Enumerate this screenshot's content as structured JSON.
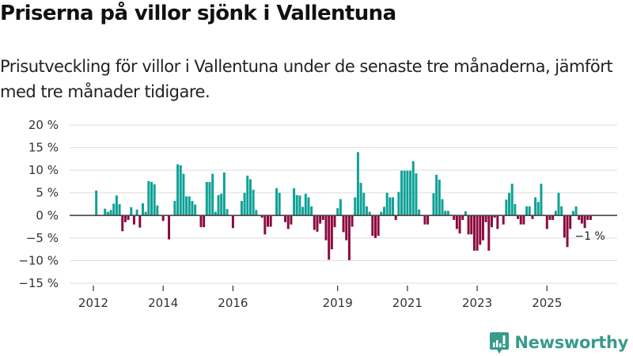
{
  "header": {
    "title": "Priserna på villor sjönk i Vallentuna",
    "subtitle": "Prisutveckling för villor i Vallentuna under de senaste tre månaderna, jämfört med tre månader tidigare."
  },
  "branding": {
    "logo_icon": "bar-chart-speech-bubble-icon",
    "logo_text": "Newsworthy"
  },
  "colors": {
    "positive": "#0fa196",
    "negative": "#8c0a3e",
    "zero_line": "#444444",
    "grid": "#dddddd",
    "brand": "#3a9a8c"
  },
  "chart_data": {
    "type": "bar",
    "title": "Priserna på villor sjönk i Vallentuna",
    "subtitle": "Prisutveckling för villor i Vallentuna under de senaste tre månaderna, jämfört med tre månader tidigare.",
    "xlabel": "",
    "ylabel": "",
    "unit": "%",
    "ylim": [
      -15,
      20
    ],
    "yticks": [
      -15,
      -10,
      -5,
      0,
      5,
      10,
      15,
      20
    ],
    "ytick_labels": [
      "−15 %",
      "−10 %",
      "−5 %",
      "0 %",
      "5 %",
      "10 %",
      "15 %",
      "20 %"
    ],
    "xticks": [
      2012,
      2014,
      2016,
      2019,
      2021,
      2023,
      2025
    ],
    "xtick_labels": [
      "2012",
      "2014",
      "2016",
      "2019",
      "2021",
      "2023",
      "2025"
    ],
    "x_start": "2012-01",
    "frequency": "monthly",
    "grid": true,
    "annotation": {
      "text": "−1 %",
      "attached_to": "last"
    },
    "values": [
      null,
      5.5,
      null,
      null,
      1.5,
      0.8,
      1.2,
      2.6,
      4.4,
      2.5,
      -3.5,
      -1.5,
      -1.0,
      1.8,
      -2.0,
      1.3,
      -2.7,
      2.7,
      0.8,
      7.6,
      7.4,
      6.9,
      2.2,
      null,
      -1.2,
      null,
      -5.3,
      null,
      3.2,
      11.3,
      11.1,
      9.2,
      4.2,
      4.2,
      3.2,
      2.4,
      null,
      -2.6,
      -2.6,
      7.4,
      7.4,
      9.2,
      0.8,
      4.5,
      4.8,
      9.5,
      1.4,
      null,
      -2.8,
      null,
      null,
      3.2,
      5.0,
      8.8,
      8.0,
      5.7,
      1.2,
      null,
      -0.5,
      -4.2,
      -2.5,
      -2.5,
      null,
      6.0,
      5.0,
      null,
      -1.5,
      -3.0,
      -2.0,
      6.0,
      4.5,
      4.4,
      1.9,
      4.8,
      4.0,
      2.0,
      -3.2,
      -3.6,
      -1.8,
      -1.0,
      -5.5,
      -9.8,
      -7.5,
      -2.6,
      1.6,
      3.6,
      -3.7,
      -5.5,
      -9.9,
      -2.5,
      4.0,
      14.0,
      7.2,
      5.0,
      2.0,
      0.8,
      -4.5,
      -5.0,
      -4.5,
      0.8,
      1.9,
      5.0,
      4.0,
      4.0,
      -1.0,
      5.2,
      9.9,
      9.9,
      9.9,
      9.9,
      12.0,
      9.3,
      1.3,
      null,
      -2.0,
      -2.0,
      null,
      4.9,
      9.0,
      7.9,
      3.6,
      1.0,
      1.0,
      null,
      -1.0,
      -3.0,
      -4.0,
      -1.0,
      0.9,
      -4.2,
      -4.2,
      -7.8,
      -7.8,
      -6.5,
      -5.5,
      -1.5,
      -7.8,
      -2.6,
      -0.5,
      -3.0,
      null,
      -2.0,
      3.5,
      5.0,
      7.0,
      2.5,
      -0.8,
      -2.0,
      -2.0,
      2.0,
      2.0,
      -0.8,
      4.0,
      3.0,
      7.0,
      null,
      -3.0,
      -1.0,
      -1.0,
      1.0,
      5.0,
      2.0,
      -4.9,
      -7.0,
      -3.0,
      1.0,
      2.0,
      -1.0,
      -1.8,
      -2.8,
      -1.0,
      -1.0
    ]
  }
}
